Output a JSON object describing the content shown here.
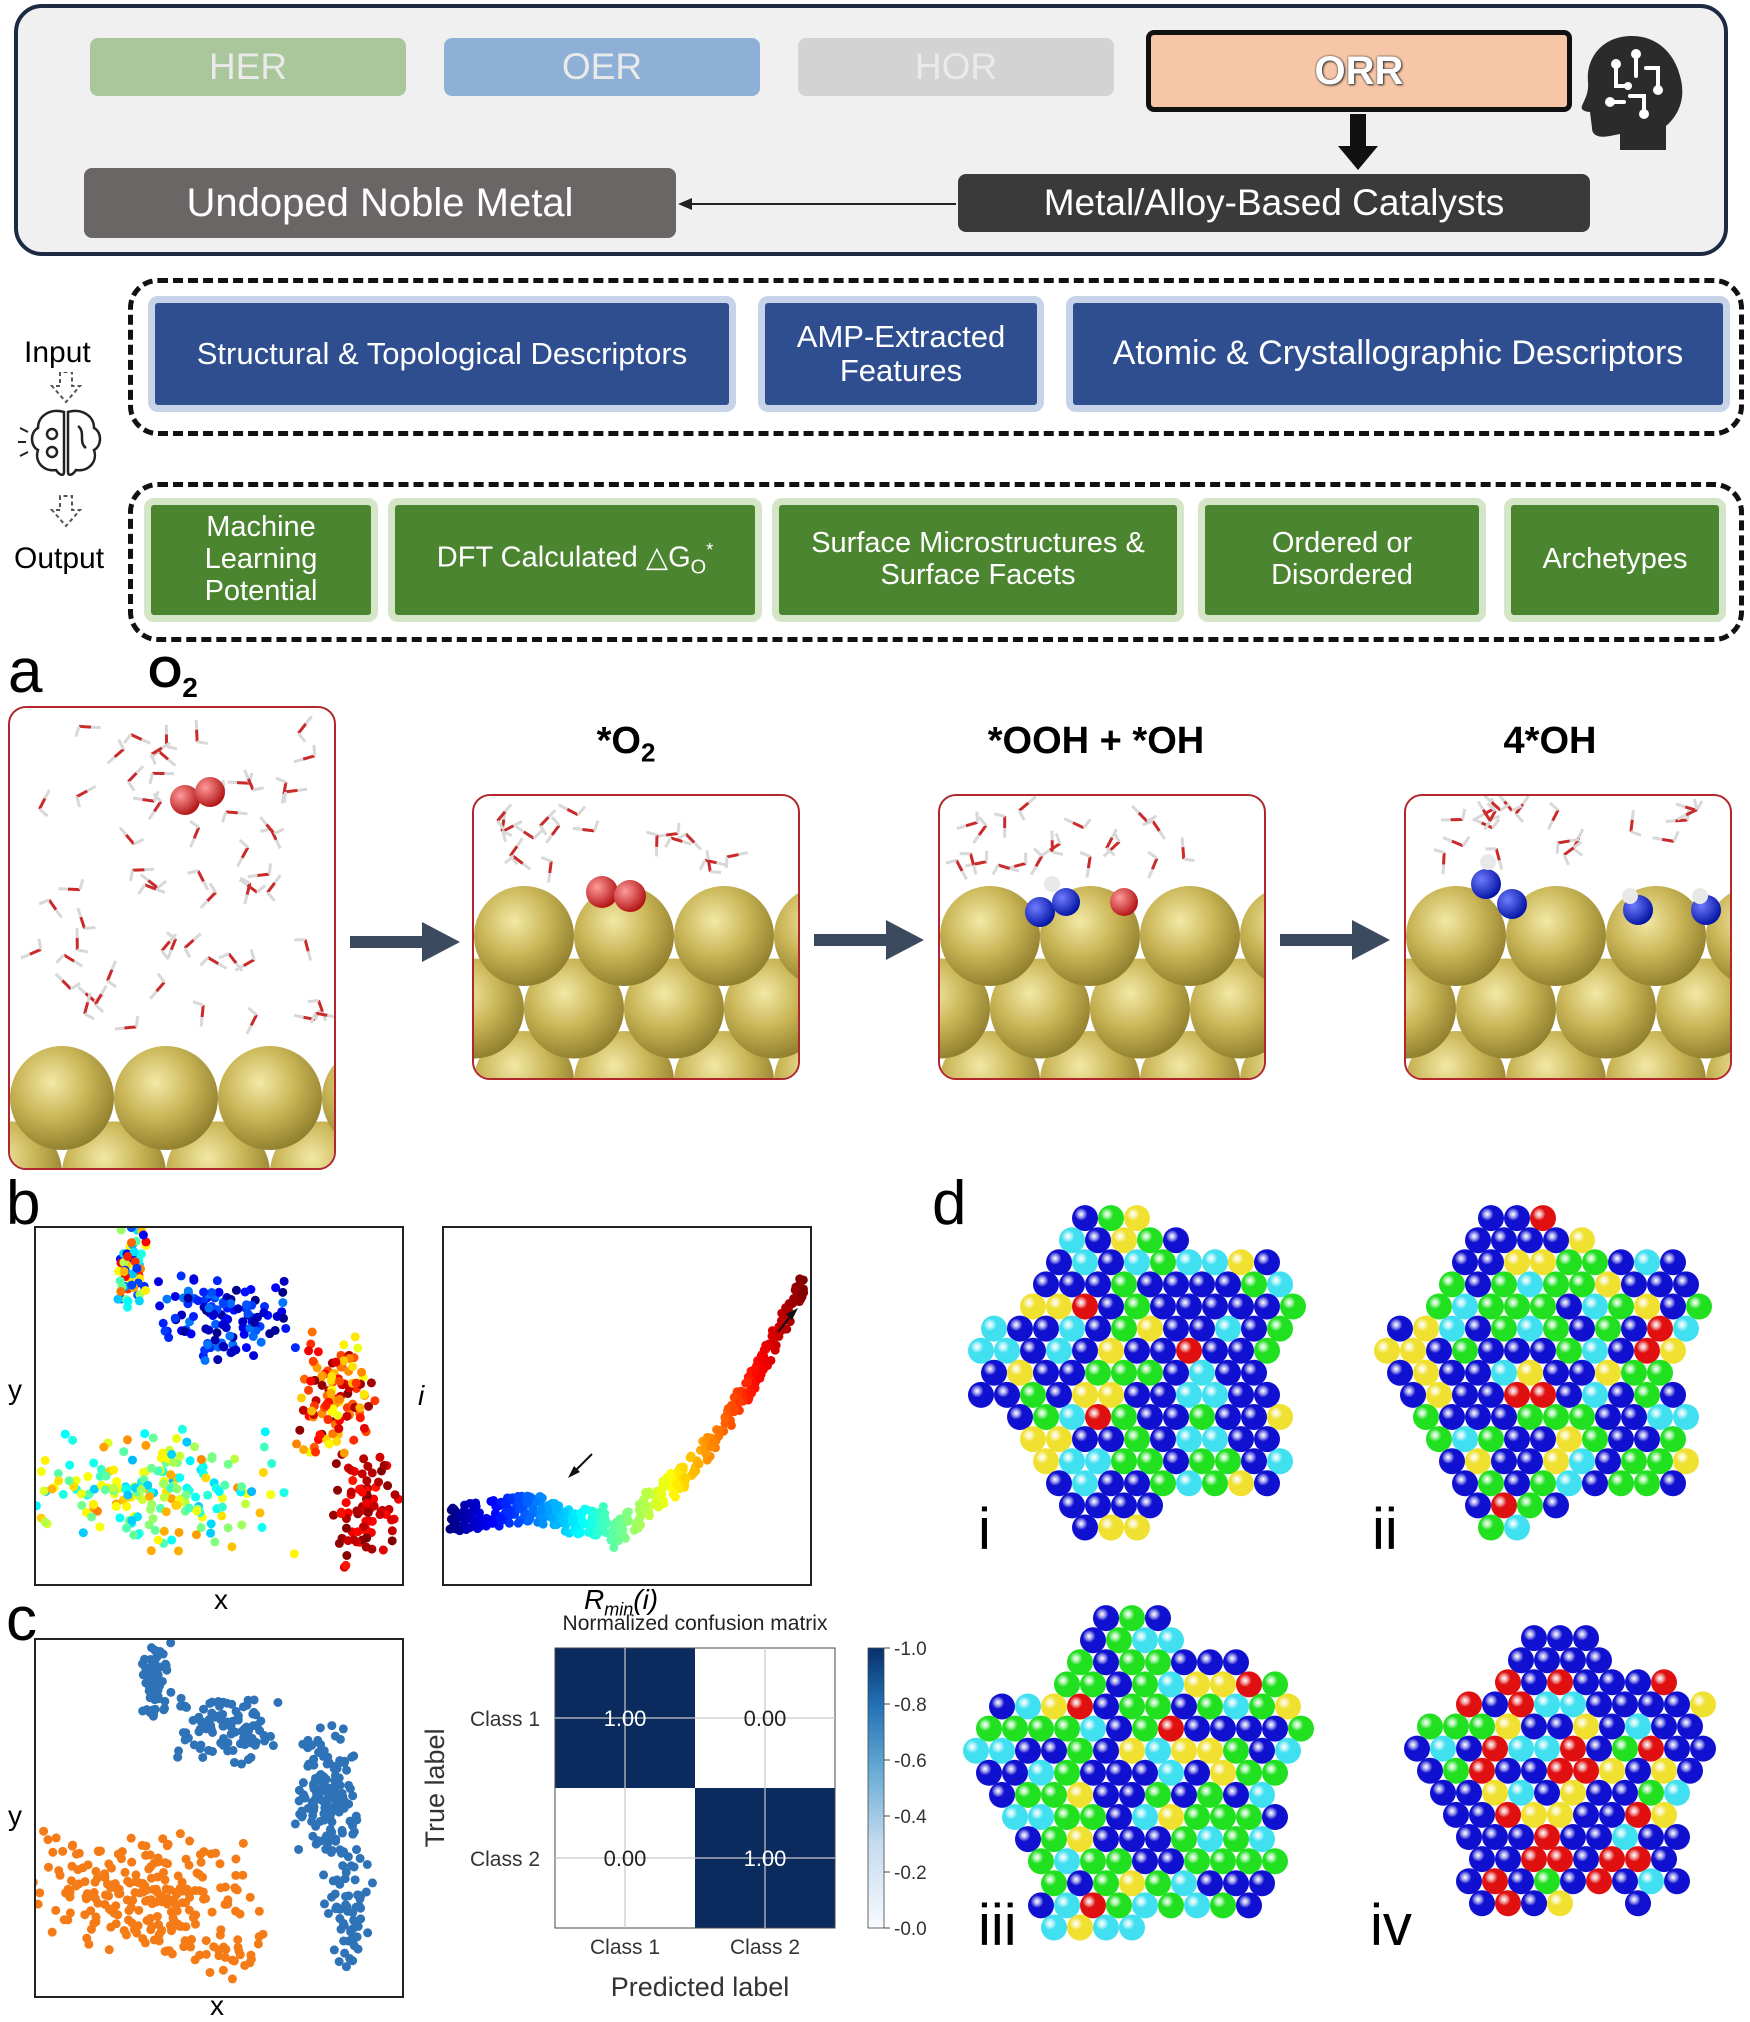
{
  "header": {
    "reactions": [
      "HER",
      "OER",
      "HOR",
      "ORR"
    ],
    "catalyst_class": "Metal/Alloy-Based Catalysts",
    "subclass": "Undoped Noble Metal",
    "colors": {
      "her": "#a9c79a",
      "oer": "#8eb0d6",
      "hor": "#d3d3d3",
      "orr": "#f6c6a6",
      "dark": "#3a3a3a",
      "grey": "#6b6666"
    }
  },
  "workflow": {
    "input_label": "Input",
    "output_label": "Output",
    "inputs": [
      "Structural & Topological Descriptors",
      "AMP-Extracted Features",
      "Atomic & Crystallographic Descriptors"
    ],
    "outputs": [
      "Machine Learning Potential",
      "DFT Calculated △G",
      "Surface Microstructures & Surface Facets",
      "Ordered or Disordered",
      "Archetypes"
    ],
    "dft_subscript": "O",
    "dft_superscript": "*"
  },
  "panel_a": {
    "letter": "a",
    "start_label": "O",
    "start_sub": "2",
    "stages": [
      {
        "label": "*O",
        "sub": "2"
      },
      {
        "label": "*OOH + *OH",
        "sub": ""
      },
      {
        "label": "4*OH",
        "sub": ""
      }
    ]
  },
  "panel_b": {
    "letter": "b",
    "left_xlabel": "x",
    "left_ylabel": "y",
    "right_xlabel": "R",
    "right_xlabel_sub": "min",
    "right_xlabel_tail": "(i)",
    "right_ylabel": "i"
  },
  "panel_c": {
    "letter": "c",
    "scatter_xlabel": "x",
    "scatter_ylabel": "y",
    "classes": [
      "Class 1",
      "Class 2"
    ],
    "series_colors": [
      "#2e72b8",
      "#f47b16"
    ],
    "confusion_title": "Normalized confusion matrix",
    "confusion_values": [
      [
        "1.00",
        "0.00"
      ],
      [
        "0.00",
        "1.00"
      ]
    ],
    "ylabel": "True label",
    "xlabel": "Predicted label",
    "colorbar_ticks": [
      "1.0",
      "0.8",
      "0.6",
      "0.4",
      "0.2",
      "0.0"
    ]
  },
  "panel_d": {
    "letter": "d",
    "labels": [
      "i",
      "ii",
      "iii",
      "iv"
    ]
  }
}
